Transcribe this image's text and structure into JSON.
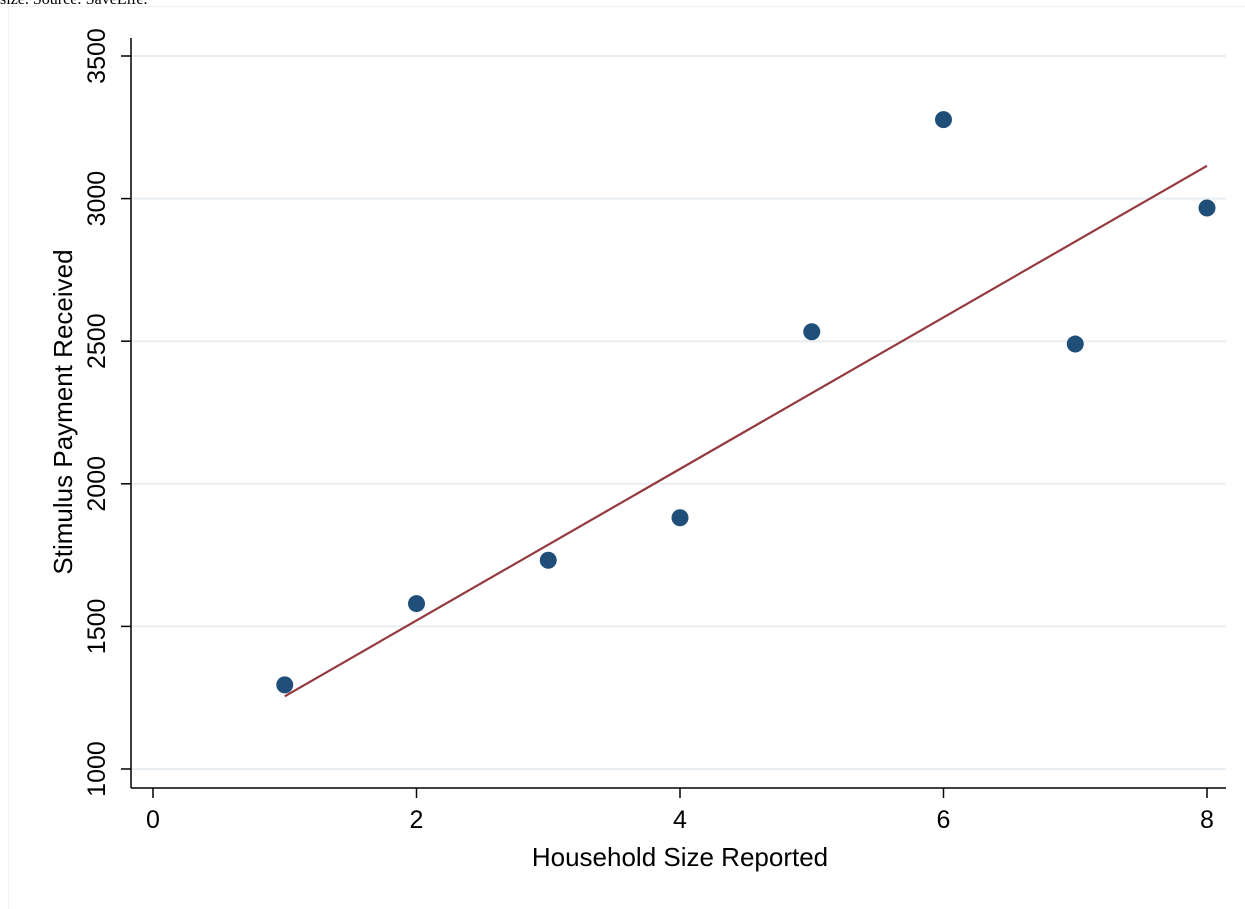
{
  "caption": "size. Source: SaveLife.",
  "chart_data": {
    "type": "scatter",
    "xlabel": "Household Size Reported",
    "ylabel": "Stimulus Payment Received",
    "xlim": [
      0,
      8
    ],
    "ylim": [
      1000,
      3500
    ],
    "x_ticks": [
      0,
      2,
      4,
      6,
      8
    ],
    "y_ticks": [
      1000,
      1500,
      2000,
      2500,
      3000,
      3500
    ],
    "grid": true,
    "series": [
      {
        "x": [
          1,
          2,
          3,
          4,
          5,
          6,
          7,
          8
        ],
        "y": [
          1295,
          1580,
          1732,
          1881,
          2533,
          3277,
          2490,
          2967
        ]
      }
    ],
    "fit_line": {
      "x": [
        1,
        8
      ],
      "y": [
        1255,
        3115
      ]
    },
    "colors": {
      "points": "#1f4e79",
      "fit_line": "#943a3f",
      "grid": "#e8eef2",
      "axis": "#000000"
    }
  }
}
